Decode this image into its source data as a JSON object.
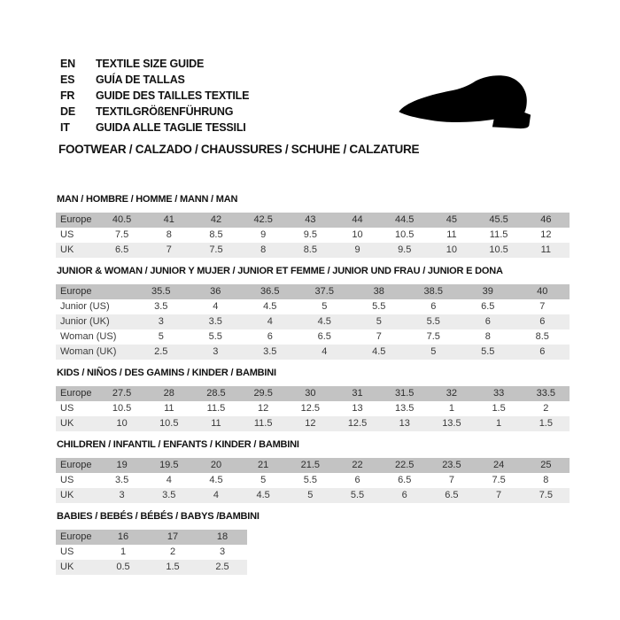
{
  "header": {
    "languages": [
      {
        "code": "EN",
        "text": "TEXTILE SIZE GUIDE"
      },
      {
        "code": "ES",
        "text": "GUÍA DE TALLAS"
      },
      {
        "code": "FR",
        "text": "GUIDE DES TAILLES TEXTILE"
      },
      {
        "code": "DE",
        "text": "TEXTILGRÖßENFÜHRUNG"
      },
      {
        "code": "IT",
        "text": "GUIDA ALLE TAGLIE TESSILI"
      }
    ],
    "category_title": "FOOTWEAR / CALZADO / CHAUSSURES / SCHUHE / CALZATURE",
    "shoe_icon": "dress-shoe-silhouette-icon"
  },
  "colors": {
    "table_header_bg": "#c3c3c3",
    "table_stripe_bg": "#ececec",
    "ink": "#121212",
    "cell_ink": "#3a3a3a"
  },
  "tables": [
    {
      "title": "MAN / HOMBRE / HOMME / MANN / MAN",
      "rows": [
        {
          "label": "Europe",
          "values": [
            "40.5",
            "41",
            "42",
            "42.5",
            "43",
            "44",
            "44.5",
            "45",
            "45.5",
            "46"
          ]
        },
        {
          "label": "US",
          "values": [
            "7.5",
            "8",
            "8.5",
            "9",
            "9.5",
            "10",
            "10.5",
            "11",
            "11.5",
            "12"
          ]
        },
        {
          "label": "UK",
          "values": [
            "6.5",
            "7",
            "7.5",
            "8",
            "8.5",
            "9",
            "9.5",
            "10",
            "10.5",
            "11"
          ]
        }
      ]
    },
    {
      "title": "JUNIOR & WOMAN / JUNIOR Y MUJER / JUNIOR ET FEMME / JUNIOR UND FRAU / JUNIOR E DONA",
      "rows": [
        {
          "label": "Europe",
          "values": [
            "35.5",
            "36",
            "36.5",
            "37.5",
            "38",
            "38.5",
            "39",
            "40"
          ]
        },
        {
          "label": "Junior (US)",
          "values": [
            "3.5",
            "4",
            "4.5",
            "5",
            "5.5",
            "6",
            "6.5",
            "7"
          ]
        },
        {
          "label": "Junior (UK)",
          "values": [
            "3",
            "3.5",
            "4",
            "4.5",
            "5",
            "5.5",
            "6",
            "6"
          ]
        },
        {
          "label": "Woman (US)",
          "values": [
            "5",
            "5.5",
            "6",
            "6.5",
            "7",
            "7.5",
            "8",
            "8.5"
          ]
        },
        {
          "label": "Woman (UK)",
          "values": [
            "2.5",
            "3",
            "3.5",
            "4",
            "4.5",
            "5",
            "5.5",
            "6"
          ]
        }
      ]
    },
    {
      "title": "KIDS / NIÑOS / DES GAMINS / KINDER / BAMBINI",
      "rows": [
        {
          "label": "Europe",
          "values": [
            "27.5",
            "28",
            "28.5",
            "29.5",
            "30",
            "31",
            "31.5",
            "32",
            "33",
            "33.5"
          ]
        },
        {
          "label": "US",
          "values": [
            "10.5",
            "11",
            "11.5",
            "12",
            "12.5",
            "13",
            "13.5",
            "1",
            "1.5",
            "2"
          ]
        },
        {
          "label": "UK",
          "values": [
            "10",
            "10.5",
            "11",
            "11.5",
            "12",
            "12.5",
            "13",
            "13.5",
            "1",
            "1.5"
          ]
        }
      ]
    },
    {
      "title": "CHILDREN / INFANTIL / ENFANTS / KINDER / BAMBINI",
      "rows": [
        {
          "label": "Europe",
          "values": [
            "19",
            "19.5",
            "20",
            "21",
            "21.5",
            "22",
            "22.5",
            "23.5",
            "24",
            "25"
          ]
        },
        {
          "label": "US",
          "values": [
            "3.5",
            "4",
            "4.5",
            "5",
            "5.5",
            "6",
            "6.5",
            "7",
            "7.5",
            "8"
          ]
        },
        {
          "label": "UK",
          "values": [
            "3",
            "3.5",
            "4",
            "4.5",
            "5",
            "5.5",
            "6",
            "6.5",
            "7",
            "7.5"
          ]
        }
      ]
    },
    {
      "title": "BABIES  / BEBÉS / BÉBÉS / BABYS /BAMBINI",
      "rows": [
        {
          "label": "Europe",
          "values": [
            "16",
            "17",
            "18"
          ]
        },
        {
          "label": "US",
          "values": [
            "1",
            "2",
            "3"
          ]
        },
        {
          "label": "UK",
          "values": [
            "0.5",
            "1.5",
            "2.5"
          ]
        }
      ]
    }
  ]
}
